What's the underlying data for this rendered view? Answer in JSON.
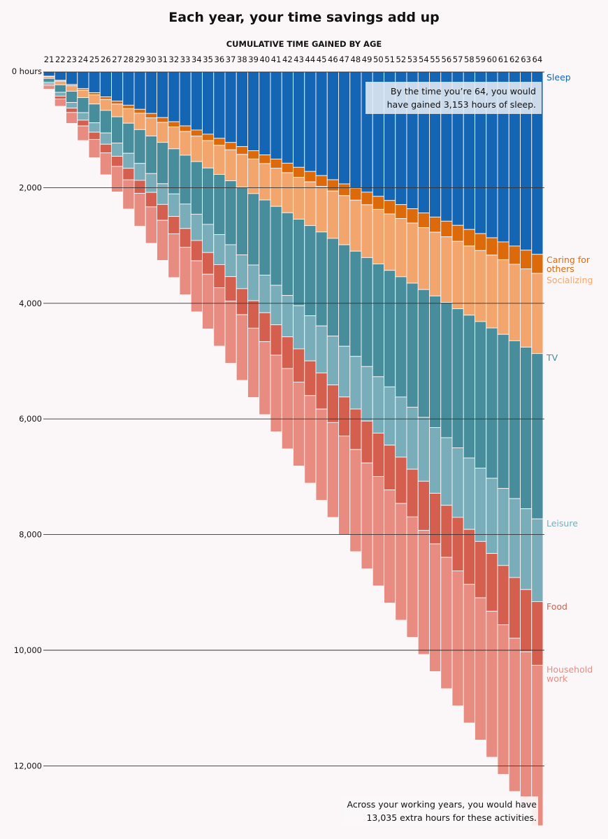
{
  "title": "Each year, your time savings add up",
  "subtitle": "CUMULATIVE TIME GAINED BY AGE",
  "annotations": {
    "top": "By the time you’re 64, you would have gained 3,153 hours of sleep.",
    "bottom": "Across your working years, you would have 13,035 extra hours for these activities."
  },
  "chart_data": {
    "type": "bar",
    "stacked": true,
    "orientation": "downward",
    "x": [
      21,
      22,
      23,
      24,
      25,
      26,
      27,
      28,
      29,
      30,
      31,
      32,
      33,
      34,
      35,
      36,
      37,
      38,
      39,
      40,
      41,
      42,
      43,
      44,
      45,
      46,
      47,
      48,
      49,
      50,
      51,
      52,
      53,
      54,
      55,
      56,
      57,
      58,
      59,
      60,
      61,
      62,
      63,
      64
    ],
    "xlabel": "",
    "ylabel": "",
    "y_ticks": [
      {
        "value": 0,
        "label": "0 hours"
      },
      {
        "value": 2000,
        "label": "2,000"
      },
      {
        "value": 4000,
        "label": "4,000"
      },
      {
        "value": 6000,
        "label": "6,000"
      },
      {
        "value": 8000,
        "label": "8,000"
      },
      {
        "value": 10000,
        "label": "10,000"
      },
      {
        "value": 12000,
        "label": "12,000"
      }
    ],
    "ylim": [
      0,
      13100
    ],
    "grid": true,
    "legend": "labels at right end of series",
    "series": [
      {
        "name": "Sleep",
        "color": "#1565b5",
        "per_year": 71.66,
        "final": 3153,
        "label_lines": [
          "Sleep"
        ]
      },
      {
        "name": "Caring for others",
        "color": "#dc6a0a",
        "per_year": 7.5,
        "final": 330,
        "label_lines": [
          "Caring for",
          "others"
        ]
      },
      {
        "name": "Socializing",
        "color": "#f2a66e",
        "per_year": 31.5,
        "final": 1386,
        "label_lines": [
          "Socializing"
        ]
      },
      {
        "name": "TV",
        "color": "#478d9b",
        "per_year": 65.0,
        "final": 2860,
        "label_lines": [
          "TV"
        ]
      },
      {
        "name": "Leisure",
        "color": "#78adb9",
        "per_year": 32.5,
        "final": 1430,
        "label_lines": [
          "Leisure"
        ]
      },
      {
        "name": "Food",
        "color": "#d55f4e",
        "per_year": 25.0,
        "final": 1100,
        "label_lines": [
          "Food"
        ]
      },
      {
        "name": "Household work",
        "color": "#e88b80",
        "per_year": 63.1,
        "final": 2776,
        "label_lines": [
          "Household",
          "work"
        ]
      }
    ],
    "total_final": 13035
  }
}
